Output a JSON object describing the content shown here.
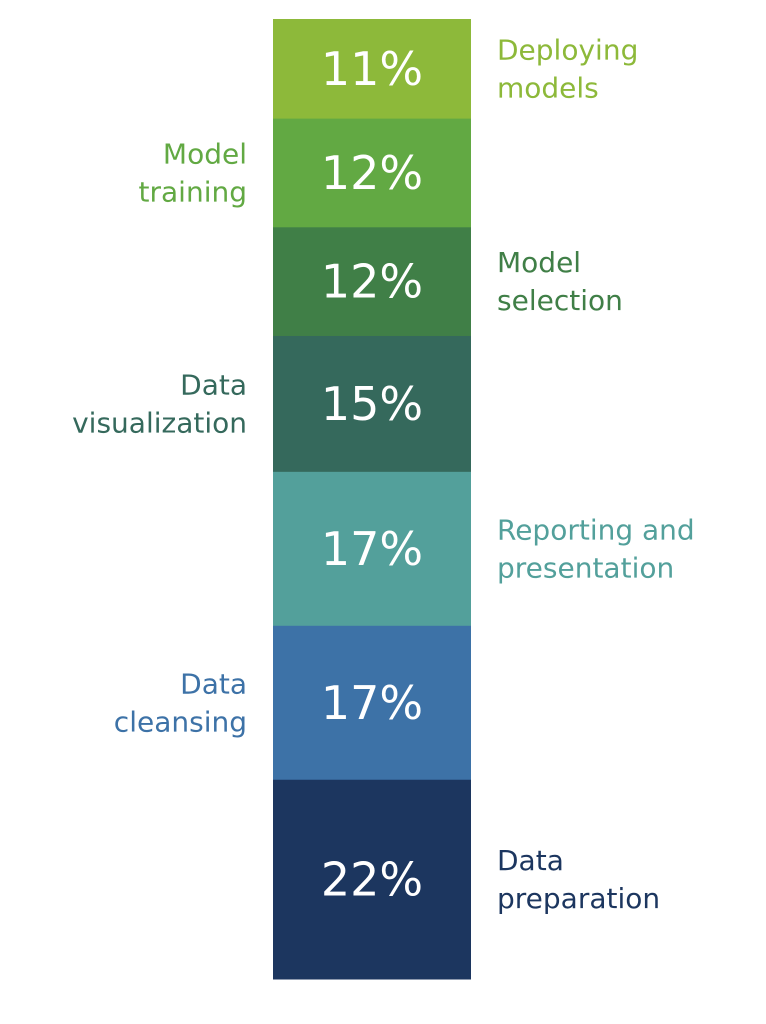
{
  "chart_data": {
    "type": "bar",
    "stacked": true,
    "orientation": "vertical",
    "value_suffix": "%",
    "categories": [
      "Deploying models",
      "Model training",
      "Model selection",
      "Data visualization",
      "Reporting and presentation",
      "Data cleansing",
      "Data preparation"
    ],
    "values": [
      11,
      12,
      12,
      15,
      17,
      17,
      22
    ],
    "value_labels": [
      "11%",
      "12%",
      "12%",
      "15%",
      "17%",
      "17%",
      "22%"
    ],
    "label_lines": [
      [
        "Deploying",
        "models"
      ],
      [
        "Model",
        "training"
      ],
      [
        "Model",
        "selection"
      ],
      [
        "Data",
        "visualization"
      ],
      [
        "Reporting and",
        "presentation"
      ],
      [
        "Data",
        "cleansing"
      ],
      [
        "Data",
        "preparation"
      ]
    ],
    "label_sides": [
      "right",
      "left",
      "right",
      "left",
      "right",
      "left",
      "right"
    ],
    "colors": [
      "#8db93a",
      "#62a943",
      "#407f47",
      "#35695c",
      "#53a09b",
      "#3d72a7",
      "#1c365f"
    ],
    "label_colors": [
      "#8db93a",
      "#62a943",
      "#407f47",
      "#35695c",
      "#53a09b",
      "#3d72a7",
      "#1c365f"
    ],
    "order": "top-to-bottom",
    "title": "",
    "xlabel": "",
    "ylabel": ""
  }
}
